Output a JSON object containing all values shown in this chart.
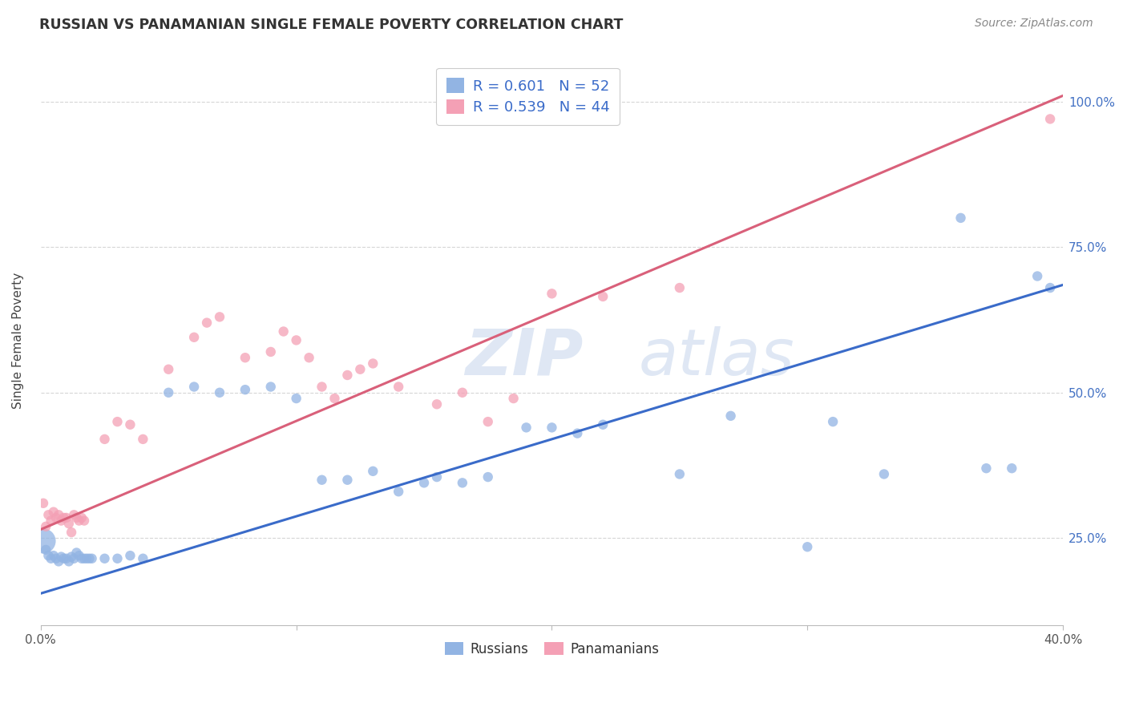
{
  "title": "RUSSIAN VS PANAMANIAN SINGLE FEMALE POVERTY CORRELATION CHART",
  "source": "Source: ZipAtlas.com",
  "ylabel": "Single Female Poverty",
  "xlim": [
    0.0,
    0.4
  ],
  "ylim": [
    0.1,
    1.08
  ],
  "russian_R": 0.601,
  "russian_N": 52,
  "panamanian_R": 0.539,
  "panamanian_N": 44,
  "russian_color": "#92b4e3",
  "panamanian_color": "#f4a0b5",
  "russian_line_color": "#3a6bc9",
  "panamanian_line_color": "#d9607a",
  "russian_line": [
    0.0,
    0.155,
    0.4,
    0.685
  ],
  "panamanian_line": [
    0.0,
    0.265,
    0.4,
    1.01
  ],
  "russians_x": [
    0.001,
    0.002,
    0.003,
    0.004,
    0.005,
    0.006,
    0.007,
    0.008,
    0.009,
    0.01,
    0.011,
    0.012,
    0.013,
    0.014,
    0.015,
    0.016,
    0.017,
    0.018,
    0.019,
    0.02,
    0.025,
    0.03,
    0.035,
    0.04,
    0.05,
    0.06,
    0.07,
    0.08,
    0.09,
    0.1,
    0.11,
    0.12,
    0.13,
    0.14,
    0.15,
    0.155,
    0.165,
    0.175,
    0.19,
    0.2,
    0.21,
    0.22,
    0.25,
    0.27,
    0.3,
    0.31,
    0.33,
    0.36,
    0.37,
    0.38,
    0.39,
    0.395
  ],
  "russians_y": [
    0.245,
    0.23,
    0.22,
    0.215,
    0.22,
    0.215,
    0.21,
    0.218,
    0.215,
    0.215,
    0.21,
    0.218,
    0.215,
    0.225,
    0.22,
    0.215,
    0.215,
    0.215,
    0.215,
    0.215,
    0.215,
    0.215,
    0.22,
    0.215,
    0.5,
    0.51,
    0.5,
    0.505,
    0.51,
    0.49,
    0.35,
    0.35,
    0.365,
    0.33,
    0.345,
    0.355,
    0.345,
    0.355,
    0.44,
    0.44,
    0.43,
    0.445,
    0.36,
    0.46,
    0.235,
    0.45,
    0.36,
    0.8,
    0.37,
    0.37,
    0.7,
    0.68
  ],
  "russians_size": [
    500,
    80,
    80,
    80,
    80,
    80,
    80,
    80,
    80,
    80,
    80,
    80,
    80,
    80,
    80,
    80,
    80,
    80,
    80,
    80,
    80,
    80,
    80,
    80,
    80,
    80,
    80,
    80,
    80,
    80,
    80,
    80,
    80,
    80,
    80,
    80,
    80,
    80,
    80,
    80,
    80,
    80,
    80,
    80,
    80,
    80,
    80,
    80,
    80,
    80,
    80,
    80
  ],
  "panamanians_x": [
    0.001,
    0.002,
    0.003,
    0.004,
    0.005,
    0.006,
    0.007,
    0.008,
    0.009,
    0.01,
    0.011,
    0.012,
    0.013,
    0.014,
    0.015,
    0.016,
    0.017,
    0.025,
    0.03,
    0.035,
    0.04,
    0.05,
    0.06,
    0.065,
    0.07,
    0.08,
    0.09,
    0.095,
    0.1,
    0.105,
    0.11,
    0.115,
    0.12,
    0.125,
    0.13,
    0.14,
    0.155,
    0.165,
    0.175,
    0.185,
    0.2,
    0.22,
    0.25,
    0.395
  ],
  "panamanians_y": [
    0.31,
    0.27,
    0.29,
    0.28,
    0.295,
    0.285,
    0.29,
    0.28,
    0.285,
    0.285,
    0.275,
    0.26,
    0.29,
    0.285,
    0.28,
    0.285,
    0.28,
    0.42,
    0.45,
    0.445,
    0.42,
    0.54,
    0.595,
    0.62,
    0.63,
    0.56,
    0.57,
    0.605,
    0.59,
    0.56,
    0.51,
    0.49,
    0.53,
    0.54,
    0.55,
    0.51,
    0.48,
    0.5,
    0.45,
    0.49,
    0.67,
    0.665,
    0.68,
    0.97
  ],
  "panamanians_size": [
    80,
    80,
    80,
    80,
    80,
    80,
    80,
    80,
    80,
    80,
    80,
    80,
    80,
    80,
    80,
    80,
    80,
    80,
    80,
    80,
    80,
    80,
    80,
    80,
    80,
    80,
    80,
    80,
    80,
    80,
    80,
    80,
    80,
    80,
    80,
    80,
    80,
    80,
    80,
    80,
    80,
    80,
    80,
    80
  ]
}
